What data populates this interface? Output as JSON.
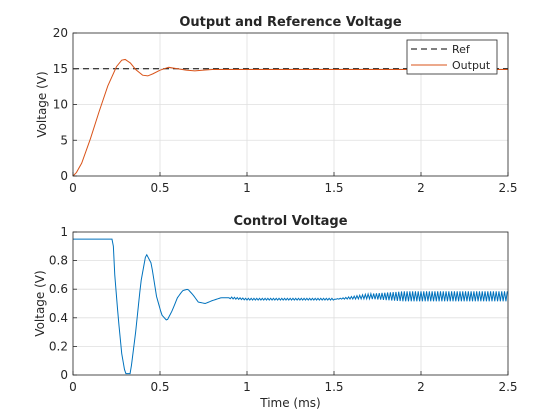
{
  "chart_data": [
    {
      "type": "line",
      "title": "Output and Reference Voltage",
      "xlabel": "",
      "ylabel": "Voltage (V)",
      "xlim": [
        0,
        2.5
      ],
      "ylim": [
        0,
        20
      ],
      "xticks": [
        "0",
        "0.5",
        "1",
        "1.5",
        "2",
        "2.5"
      ],
      "yticks": [
        "0",
        "5",
        "10",
        "15",
        "20"
      ],
      "grid": true,
      "legend_position": "top-right",
      "series": [
        {
          "name": "Ref",
          "color": "#000000",
          "style": "dashed",
          "x": [
            0,
            2.5
          ],
          "y": [
            15,
            15
          ]
        },
        {
          "name": "Output",
          "color": "#d95319",
          "style": "solid",
          "x": [
            0,
            0.02,
            0.05,
            0.1,
            0.15,
            0.2,
            0.25,
            0.28,
            0.3,
            0.33,
            0.36,
            0.4,
            0.43,
            0.46,
            0.5,
            0.55,
            0.6,
            0.65,
            0.7,
            0.75,
            0.8,
            0.9,
            1.0,
            1.2,
            1.5,
            2.0,
            2.5
          ],
          "y": [
            0,
            0.5,
            1.8,
            5.2,
            9.0,
            12.6,
            15.3,
            16.2,
            16.3,
            15.8,
            14.9,
            14.1,
            14.0,
            14.3,
            14.8,
            15.2,
            15.0,
            14.8,
            14.7,
            14.8,
            14.9,
            14.9,
            14.9,
            14.9,
            14.9,
            14.9,
            14.9
          ]
        }
      ]
    },
    {
      "type": "line",
      "title": "Control Voltage",
      "xlabel": "Time (ms)",
      "ylabel": "Voltage (V)",
      "xlim": [
        0,
        2.5
      ],
      "ylim": [
        0,
        1
      ],
      "xticks": [
        "0",
        "0.5",
        "1",
        "1.5",
        "2",
        "2.5"
      ],
      "yticks": [
        "0",
        "0.2",
        "0.4",
        "0.6",
        "0.8",
        "1"
      ],
      "grid": true,
      "series": [
        {
          "name": "",
          "color": "#0072bd",
          "style": "solid",
          "x": [
            0,
            0.23,
            0.24,
            0.26,
            0.28,
            0.3,
            0.33,
            0.36,
            0.39,
            0.42,
            0.45,
            0.48,
            0.51,
            0.54,
            0.57,
            0.6,
            0.63,
            0.66,
            0.69,
            0.72,
            0.76,
            0.8,
            0.85,
            0.9,
            1.0,
            1.2,
            1.5,
            1.6,
            1.7,
            2.0,
            2.5
          ],
          "y": [
            0.95,
            0.95,
            0.7,
            0.4,
            0.15,
            0.01,
            0.01,
            0.3,
            0.65,
            0.85,
            0.78,
            0.55,
            0.42,
            0.38,
            0.45,
            0.54,
            0.59,
            0.6,
            0.56,
            0.51,
            0.5,
            0.52,
            0.54,
            0.54,
            0.53,
            0.53,
            0.53,
            0.54,
            0.55,
            0.55,
            0.55
          ],
          "ripple_start": 1.5,
          "ripple_amplitude": 0.035
        }
      ]
    }
  ]
}
